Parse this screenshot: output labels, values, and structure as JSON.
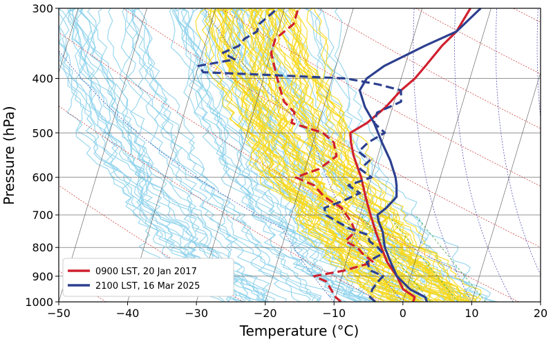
{
  "chart_data": {
    "type": "line",
    "chart_kind": "skew-T log-P diagram",
    "xlabel": "Temperature (°C)",
    "ylabel": "Pressure (hPa)",
    "xlim": [
      -50,
      20
    ],
    "ylim": [
      1000,
      300
    ],
    "y_scale": "log",
    "grid": true,
    "legend_position": "bottom-left",
    "x_ticks": [
      -50,
      -40,
      -30,
      -20,
      -10,
      0,
      10,
      20
    ],
    "y_ticks": [
      1000,
      900,
      800,
      700,
      600,
      500,
      400,
      300
    ],
    "x_tick_labels": [
      "−50",
      "−40",
      "−30",
      "−20",
      "−10",
      "0",
      "10",
      "20"
    ],
    "y_tick_labels": [
      "1000",
      "900",
      "800",
      "700",
      "600",
      "500",
      "400",
      "300"
    ],
    "colors": {
      "red": "#d0202e",
      "blue": "#2c3f8f",
      "light_blue_ensemble": "#8fd3ec",
      "yellow_ensemble": "#f7d81a",
      "isotherm": "#555555",
      "dry_adiabat": "#d04040",
      "moist_adiabat": "#5050b0",
      "mixing_ratio": "#30a030"
    },
    "series": [
      {
        "name": "0900 LST, 20 Jan 2017",
        "color": "#d0202e",
        "style": "solid",
        "pressure": [
          1000,
          980,
          950,
          900,
          850,
          800,
          750,
          700,
          650,
          600,
          550,
          520,
          500,
          480,
          450,
          420,
          400,
          380,
          350,
          330,
          300
        ],
        "temperature": [
          1.5,
          1.5,
          -0.5,
          -2,
          -4,
          -5.5,
          -7,
          -8.5,
          -10,
          -11.5,
          -13.5,
          -14.5,
          -15,
          -13,
          -11,
          -9.5,
          -8,
          -7,
          -5.5,
          -4,
          -3
        ]
      },
      {
        "name": "",
        "color": "#d0202e",
        "style": "dashed",
        "pressure": [
          1000,
          980,
          950,
          920,
          900,
          880,
          850,
          820,
          800,
          780,
          750,
          720,
          700,
          680,
          650,
          620,
          600,
          580,
          550,
          520,
          500,
          480,
          460,
          440,
          420,
          400,
          380,
          360,
          340,
          320,
          300
        ],
        "temperature": [
          -9,
          -10,
          -11,
          -12,
          -14,
          -10,
          -6,
          -8,
          -9,
          -11,
          -10,
          -11,
          -12,
          -13,
          -16,
          -18,
          -21,
          -18,
          -16,
          -17,
          -19,
          -24,
          -24,
          -26,
          -27,
          -28,
          -29,
          -30,
          -30,
          -28,
          -28
        ]
      },
      {
        "name": "2100 LST, 16 Mar 2025",
        "color": "#2c3f8f",
        "style": "solid",
        "pressure": [
          1000,
          980,
          950,
          900,
          850,
          800,
          750,
          720,
          700,
          680,
          650,
          620,
          600,
          560,
          520,
          480,
          450,
          420,
          400,
          380,
          350,
          330,
          300
        ],
        "temperature": [
          3.5,
          3,
          0.5,
          -2,
          -3.5,
          -5,
          -6,
          -7,
          -7.5,
          -6.5,
          -5.5,
          -6,
          -6.5,
          -8,
          -10,
          -12,
          -14,
          -15.5,
          -15,
          -13,
          -8,
          -4,
          -1.5
        ]
      },
      {
        "name": "",
        "color": "#2c3f8f",
        "style": "dashed",
        "pressure": [
          1000,
          980,
          950,
          920,
          900,
          880,
          850,
          820,
          800,
          780,
          760,
          740,
          720,
          700,
          680,
          660,
          640,
          620,
          600,
          580,
          560,
          540,
          520,
          500,
          480,
          460,
          440,
          420,
          410,
          400,
          395,
          390,
          380,
          370,
          360,
          350,
          340,
          330,
          320,
          310,
          300
        ],
        "temperature": [
          -4,
          -5,
          -5,
          -4.5,
          -4,
          -6,
          -7,
          -5,
          -6,
          -7.5,
          -8,
          -11,
          -13,
          -15,
          -15.5,
          -13,
          -11,
          -13,
          -10,
          -12,
          -11,
          -13,
          -12,
          -10,
          -12,
          -12,
          -9,
          -9.5,
          -13,
          -18,
          -28,
          -39,
          -40,
          -35,
          -37,
          -35,
          -34.5,
          -33,
          -33,
          -32,
          -31
        ]
      }
    ]
  }
}
